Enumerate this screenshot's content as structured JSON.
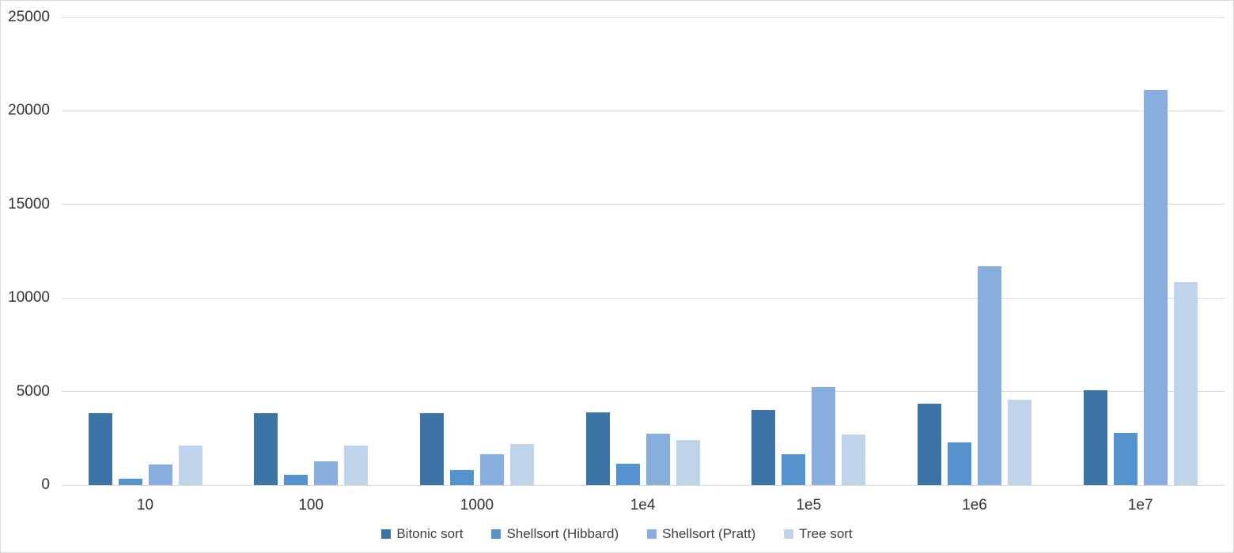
{
  "chart_data": {
    "type": "bar",
    "title": "",
    "xlabel": "",
    "ylabel": "",
    "categories": [
      "10",
      "100",
      "1000",
      "1e4",
      "1e5",
      "1e6",
      "1e7"
    ],
    "series": [
      {
        "name": "Bitonic sort",
        "color": "#3d74a6",
        "values": [
          3850,
          3850,
          3850,
          3900,
          4000,
          4350,
          5050
        ]
      },
      {
        "name": "Shellsort (Hibbard)",
        "color": "#5593ce",
        "values": [
          350,
          550,
          800,
          1150,
          1650,
          2300,
          2800
        ]
      },
      {
        "name": "Shellsort (Pratt)",
        "color": "#87aedd",
        "values": [
          1100,
          1250,
          1650,
          2750,
          5250,
          11700,
          21100
        ]
      },
      {
        "name": "Tree sort",
        "color": "#bfd3eb",
        "values": [
          2100,
          2100,
          2200,
          2400,
          2700,
          4550,
          10850
        ]
      }
    ],
    "ylim": [
      0,
      25000
    ],
    "yticks": [
      0,
      5000,
      10000,
      15000,
      20000,
      25000
    ],
    "ytick_labels": [
      "0",
      "5000",
      "10000",
      "15000",
      "20000",
      "25000"
    ],
    "grid": "horizontal",
    "gridline_color": "#d9d9d9",
    "text_color": "#333333",
    "legend_position": "bottom"
  },
  "layout_hint": {
    "note": "grouped vertical bar chart, no axis lines, light horizontal gridlines, legend centered below"
  }
}
